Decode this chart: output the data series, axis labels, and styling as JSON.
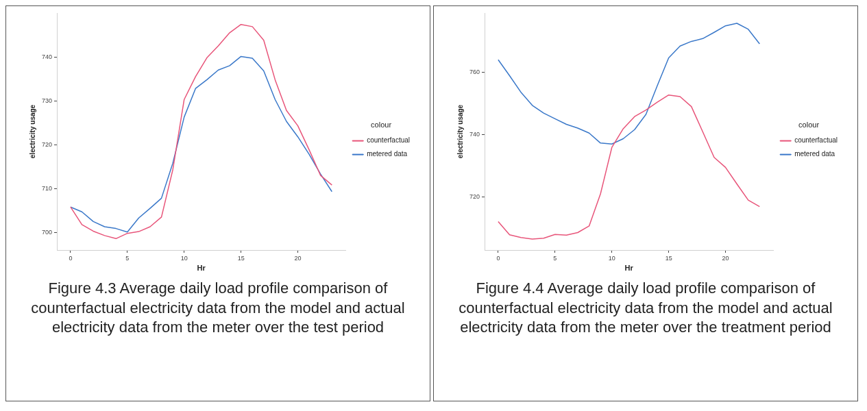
{
  "chart_data": [
    {
      "type": "line",
      "xlabel": "Hr",
      "ylabel": "electricity usage",
      "legend_title": "colour",
      "legend": "right",
      "grid": false,
      "marker": "none",
      "line_style": "solid",
      "x": [
        0,
        1,
        2,
        3,
        4,
        5,
        6,
        7,
        8,
        9,
        10,
        11,
        12,
        13,
        14,
        15,
        16,
        17,
        18,
        19,
        20,
        21,
        22,
        23
      ],
      "xlim": [
        -1.2,
        24.2
      ],
      "xticks": [
        0,
        5,
        10,
        15,
        20
      ],
      "ylim": [
        696,
        750
      ],
      "yticks": [
        700,
        710,
        720,
        730,
        740
      ],
      "series": [
        {
          "name": "counterfactual",
          "color": "#e8557a",
          "values": [
            705.8,
            701.8,
            700.3,
            699.3,
            698.6,
            699.8,
            700.2,
            701.3,
            703.5,
            714.3,
            730.3,
            735.5,
            739.8,
            742.5,
            745.5,
            747.4,
            746.9,
            743.8,
            734.8,
            727.8,
            724.3,
            718.8,
            713,
            710.8
          ]
        },
        {
          "name": "metered data",
          "color": "#3a78c9",
          "values": [
            705.8,
            704.7,
            702.5,
            701.3,
            700.9,
            700.1,
            703.3,
            705.5,
            707.8,
            715.8,
            726.3,
            732.8,
            734.8,
            737,
            738,
            740.1,
            739.7,
            736.8,
            730.3,
            725.3,
            721.8,
            717.8,
            713.3,
            709.3
          ]
        }
      ],
      "annotations": [
        "Figure 4.3 Average daily load profile comparison of counterfactual electricity data from the model and actual electricity data from the meter over the test period"
      ]
    },
    {
      "type": "line",
      "xlabel": "Hr",
      "ylabel": "electricity usage",
      "legend_title": "colour",
      "legend": "right",
      "grid": false,
      "marker": "none",
      "line_style": "solid",
      "x": [
        0,
        1,
        2,
        3,
        4,
        5,
        6,
        7,
        8,
        9,
        10,
        11,
        12,
        13,
        14,
        15,
        16,
        17,
        18,
        19,
        20,
        21,
        22,
        23
      ],
      "xlim": [
        -1.2,
        24.2
      ],
      "xticks": [
        0,
        5,
        10,
        15,
        20
      ],
      "ylim": [
        703,
        779
      ],
      "yticks": [
        720,
        740,
        760
      ],
      "series": [
        {
          "name": "counterfactual",
          "color": "#e8557a",
          "values": [
            712.1,
            707.9,
            707,
            706.5,
            706.8,
            708,
            707.8,
            708.6,
            710.7,
            721,
            735.9,
            741.9,
            745.8,
            747.9,
            750.4,
            752.7,
            752.2,
            749,
            740.9,
            732.7,
            729.5,
            724.2,
            719,
            716.9
          ]
        },
        {
          "name": "metered data",
          "color": "#3a78c9",
          "values": [
            764,
            758.9,
            753.6,
            749.4,
            746.9,
            745.1,
            743.3,
            742.1,
            740.5,
            737.3,
            737,
            738.7,
            741.6,
            746.5,
            755.7,
            764.6,
            768.4,
            769.9,
            770.8,
            772.8,
            774.9,
            775.7,
            773.8,
            769.1
          ]
        }
      ],
      "annotations": [
        "Figure 4.4 Average daily load profile comparison of counterfactual electricity data from the model and actual electricity data from the meter over the treatment period"
      ]
    }
  ]
}
